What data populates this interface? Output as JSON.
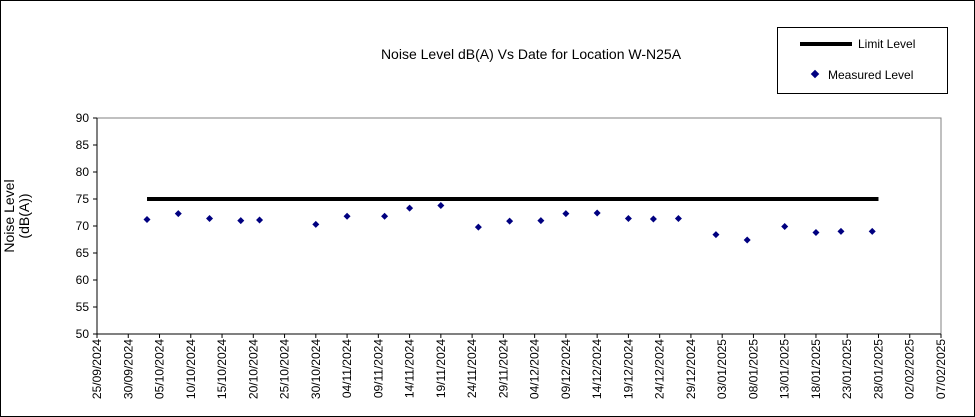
{
  "chart_data": {
    "type": "line",
    "title": "Noise Level dB(A) Vs Date for Location W-N25A",
    "xlabel": "",
    "ylabel": [
      "Noise Level",
      "(dB(A))"
    ],
    "ylim": [
      50,
      90
    ],
    "yticks": [
      50,
      55,
      60,
      65,
      70,
      75,
      80,
      85,
      90
    ],
    "xlim": [
      "25/09/2024",
      "07/02/2025"
    ],
    "xticks": [
      "25/09/2024",
      "30/09/2024",
      "05/10/2024",
      "10/10/2024",
      "15/10/2024",
      "20/10/2024",
      "25/10/2024",
      "30/10/2024",
      "04/11/2024",
      "09/11/2024",
      "14/11/2024",
      "19/11/2024",
      "24/11/2024",
      "29/11/2024",
      "04/12/2024",
      "09/12/2024",
      "14/12/2024",
      "19/12/2024",
      "24/12/2024",
      "29/12/2024",
      "03/01/2025",
      "08/01/2025",
      "13/01/2025",
      "18/01/2025",
      "23/01/2025",
      "28/01/2025",
      "02/02/2025",
      "07/02/2025"
    ],
    "grid": false,
    "legend_position": "top-right",
    "series": [
      {
        "name": "Limit Level",
        "style": "line",
        "color": "#000000",
        "x": [
          "03/10/2024",
          "28/01/2025"
        ],
        "y": [
          75,
          75
        ]
      },
      {
        "name": "Measured Level",
        "style": "scatter",
        "marker": "diamond",
        "color": "#000080",
        "x": [
          "03/10/2024",
          "08/10/2024",
          "13/10/2024",
          "18/10/2024",
          "21/10/2024",
          "30/10/2024",
          "04/11/2024",
          "10/11/2024",
          "14/11/2024",
          "19/11/2024",
          "25/11/2024",
          "30/11/2024",
          "05/12/2024",
          "09/12/2024",
          "14/12/2024",
          "19/12/2024",
          "23/12/2024",
          "27/12/2024",
          "02/01/2025",
          "07/01/2025",
          "13/01/2025",
          "18/01/2025",
          "22/01/2025",
          "27/01/2025"
        ],
        "y": [
          71.2,
          72.3,
          71.4,
          71.0,
          71.1,
          70.3,
          71.8,
          71.8,
          73.3,
          73.8,
          69.8,
          70.9,
          71.0,
          72.3,
          72.4,
          71.4,
          71.3,
          71.4,
          68.4,
          67.4,
          69.9,
          68.8,
          69.0,
          69.0
        ]
      }
    ]
  }
}
